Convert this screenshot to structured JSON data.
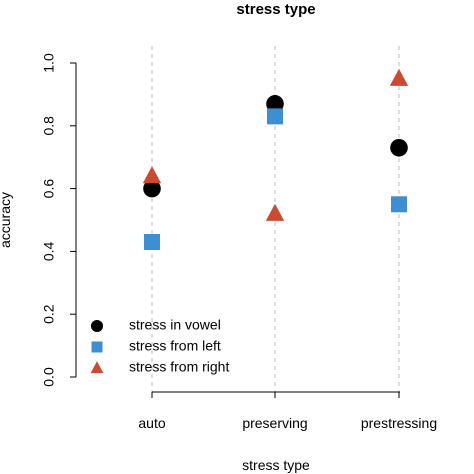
{
  "chart_data": {
    "type": "scatter",
    "title": "stress type",
    "xlabel": "stress type",
    "ylabel": "accuracy",
    "categories": [
      "auto",
      "preserving",
      "prestressing"
    ],
    "ylim": [
      0.0,
      1.0
    ],
    "yticks": [
      "0.0",
      "0.2",
      "0.4",
      "0.6",
      "0.8",
      "1.0"
    ],
    "grid": "vertical dashed at categories",
    "legend_position": "bottom-left",
    "series": [
      {
        "name": "stress in vowel",
        "marker": "circle",
        "color": "#000000",
        "values": [
          0.6,
          0.87,
          0.73
        ]
      },
      {
        "name": "stress from left",
        "marker": "square",
        "color": "#3d8fd1",
        "values": [
          0.43,
          0.83,
          0.55
        ]
      },
      {
        "name": "stress from right",
        "marker": "triangle",
        "color": "#cc4a32",
        "values": [
          0.64,
          0.52,
          0.95
        ]
      }
    ]
  }
}
